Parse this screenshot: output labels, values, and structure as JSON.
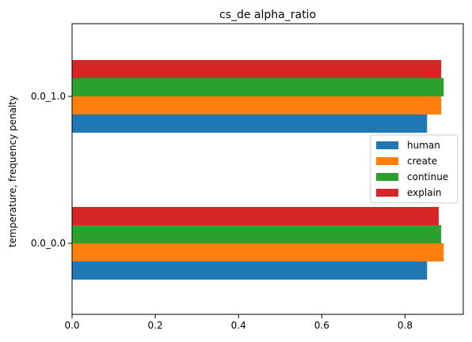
{
  "chart_data": {
    "type": "bar",
    "orientation": "horizontal",
    "title": "cs_de alpha_ratio",
    "ylabel": "temperature, frequency penalty",
    "xlabel": "",
    "categories": [
      "0.0_0.0",
      "0.0_1.0"
    ],
    "xlim": [
      0,
      0.94
    ],
    "xticks": [
      "0.0",
      "0.2",
      "0.4",
      "0.6",
      "0.8"
    ],
    "xtick_values": [
      0,
      0.2,
      0.4,
      0.6,
      0.8
    ],
    "grid": false,
    "legend_position": "center-right",
    "series": [
      {
        "name": "human",
        "color": "#1f77b4",
        "values": [
          0.853,
          0.853
        ]
      },
      {
        "name": "create",
        "color": "#ff7f0e",
        "values": [
          0.893,
          0.887
        ]
      },
      {
        "name": "continue",
        "color": "#2ca02c",
        "values": [
          0.887,
          0.893
        ]
      },
      {
        "name": "explain",
        "color": "#d62728",
        "values": [
          0.881,
          0.887
        ]
      }
    ]
  }
}
